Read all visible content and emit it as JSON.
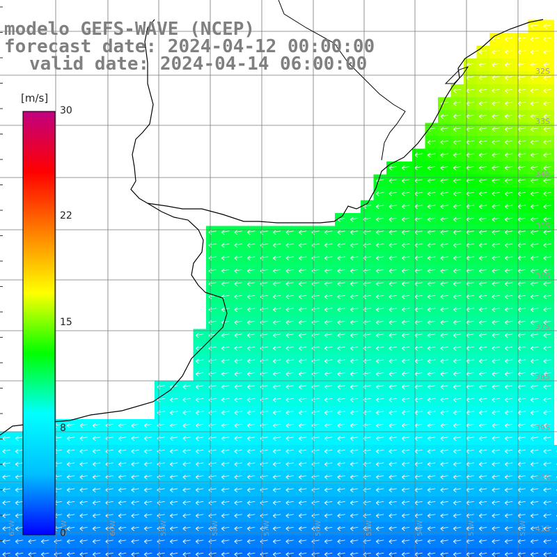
{
  "title": {
    "model": "modelo GEFS-WAVE (NCEP)",
    "forecast": "forecast date: 2024-04-12 00:00:00",
    "valid": "valid date: 2024-04-14 06:00:00"
  },
  "colorbar": {
    "unit": "[m/s]",
    "ticks": [
      "30",
      "22",
      "15",
      "8",
      "0"
    ],
    "colors": [
      "#0000ff",
      "#00bfff",
      "#00ffff",
      "#00ff00",
      "#ffff00",
      "#ff8000",
      "#ff0000",
      "#c00080"
    ]
  },
  "latitude_labels": [
    "32S",
    "33S",
    "34S",
    "35S",
    "36S",
    "37S",
    "38S",
    "39S",
    "40S",
    "41S"
  ],
  "longitude_labels": [
    "62W",
    "61W",
    "60W",
    "59W",
    "58W",
    "57W",
    "56W",
    "55W",
    "54W",
    "53W",
    "52W"
  ],
  "colors": {
    "land": "#ffffff",
    "coast": "#000000",
    "grid": "#777777",
    "arrows": "#ffffff",
    "text": "#808080"
  }
}
